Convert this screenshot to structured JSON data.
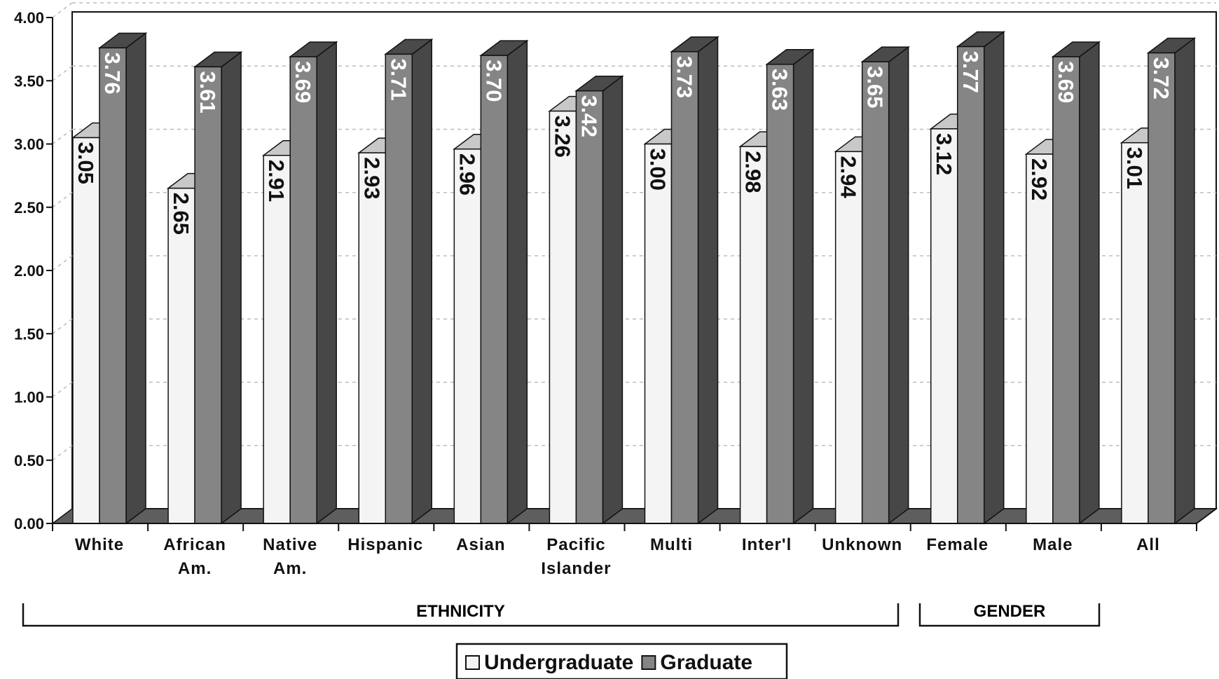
{
  "chart_data": {
    "type": "bar",
    "categories": [
      "White",
      "African Am.",
      "Native Am.",
      "Hispanic",
      "Asian",
      "Pacific Islander",
      "Multi",
      "Inter'l",
      "Unknown",
      "Female",
      "Male",
      "All"
    ],
    "category_lines": [
      [
        "White"
      ],
      [
        "African",
        "Am."
      ],
      [
        "Native",
        "Am."
      ],
      [
        "Hispanic"
      ],
      [
        "Asian"
      ],
      [
        "Pacific",
        "Islander"
      ],
      [
        "Multi"
      ],
      [
        "Inter'l"
      ],
      [
        "Unknown"
      ],
      [
        "Female"
      ],
      [
        "Male"
      ],
      [
        "All"
      ]
    ],
    "series": [
      {
        "name": "Undergraduate",
        "values": [
          3.05,
          2.65,
          2.91,
          2.93,
          2.96,
          3.26,
          3.0,
          2.98,
          2.94,
          3.12,
          2.92,
          3.01
        ],
        "labels": [
          "3.05",
          "2.65",
          "2.91",
          "2.93",
          "2.96",
          "3.26",
          "3.00",
          "2.98",
          "2.94",
          "3.12",
          "2.92",
          "3.01"
        ],
        "color": "#f4f4f4"
      },
      {
        "name": "Graduate",
        "values": [
          3.76,
          3.61,
          3.69,
          3.71,
          3.7,
          3.42,
          3.73,
          3.63,
          3.65,
          3.77,
          3.69,
          3.72
        ],
        "labels": [
          "3.76",
          "3.61",
          "3.69",
          "3.71",
          "3.70",
          "3.42",
          "3.73",
          "3.63",
          "3.65",
          "3.77",
          "3.69",
          "3.72"
        ],
        "color": "#858585"
      }
    ],
    "y_ticks": [
      "0.00",
      "0.50",
      "1.00",
      "1.50",
      "2.00",
      "2.50",
      "3.00",
      "3.50",
      "4.00"
    ],
    "ylim": [
      0,
      4
    ],
    "groups": [
      {
        "label": "ETHNICITY",
        "from": "White",
        "to": "Unknown"
      },
      {
        "label": "GENDER",
        "from": "Female",
        "to": "Male"
      }
    ],
    "legend_position": "bottom-center",
    "grid": true,
    "style": "3d"
  }
}
